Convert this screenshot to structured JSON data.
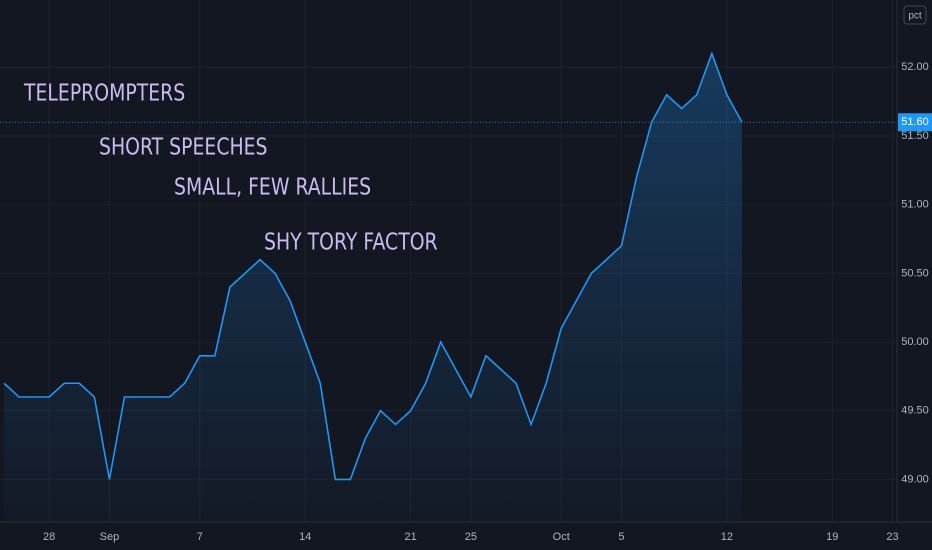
{
  "chart_data": {
    "type": "area",
    "annotations": [
      "TELEPROMPTERS",
      "SHORT SPEECHES",
      "SMALL, FEW RALLIES",
      "SHY TORY FACTOR"
    ],
    "scale_button": "pct",
    "categories": [
      null,
      null,
      null,
      "28",
      null,
      null,
      null,
      "Sep",
      null,
      null,
      null,
      null,
      null,
      "7",
      null,
      null,
      null,
      null,
      null,
      null,
      "14",
      null,
      null,
      null,
      null,
      null,
      null,
      "21",
      null,
      null,
      null,
      "25",
      null,
      null,
      null,
      null,
      null,
      "Oct",
      null,
      null,
      null,
      "5",
      null,
      null,
      null,
      null,
      null,
      null,
      "12",
      null,
      null,
      null,
      null,
      null,
      null,
      "19",
      null,
      null,
      null,
      "23"
    ],
    "series": [
      {
        "color": "#2196f3",
        "values": [
          49.7,
          49.6,
          49.6,
          49.6,
          49.7,
          49.7,
          49.6,
          49.0,
          49.6,
          49.6,
          49.6,
          49.6,
          49.7,
          49.9,
          49.9,
          50.4,
          50.5,
          50.6,
          50.5,
          50.3,
          50.0,
          49.7,
          49.0,
          49.0,
          49.3,
          49.5,
          49.4,
          49.5,
          49.7,
          50.0,
          49.8,
          49.6,
          49.9,
          49.8,
          49.7,
          49.4,
          49.7,
          50.1,
          50.3,
          50.5,
          50.6,
          50.7,
          51.2,
          51.6,
          51.8,
          51.7,
          51.8,
          52.1,
          51.8,
          51.6,
          null,
          null,
          null,
          null,
          null,
          null,
          null,
          null,
          null,
          null
        ]
      }
    ],
    "last_price": {
      "value": 51.6,
      "label": "51.60"
    },
    "ylim": [
      48.69,
      52.49
    ],
    "yticks": [
      {
        "value": 49,
        "label": "49.00"
      },
      {
        "value": 49.5,
        "label": "49.50"
      },
      {
        "value": 50,
        "label": "50.00"
      },
      {
        "value": 50.5,
        "label": "50.50"
      },
      {
        "value": 51,
        "label": "51.00"
      },
      {
        "value": 51.5,
        "label": "51.50"
      },
      {
        "value": 52,
        "label": "52.00"
      }
    ],
    "grid": true
  }
}
